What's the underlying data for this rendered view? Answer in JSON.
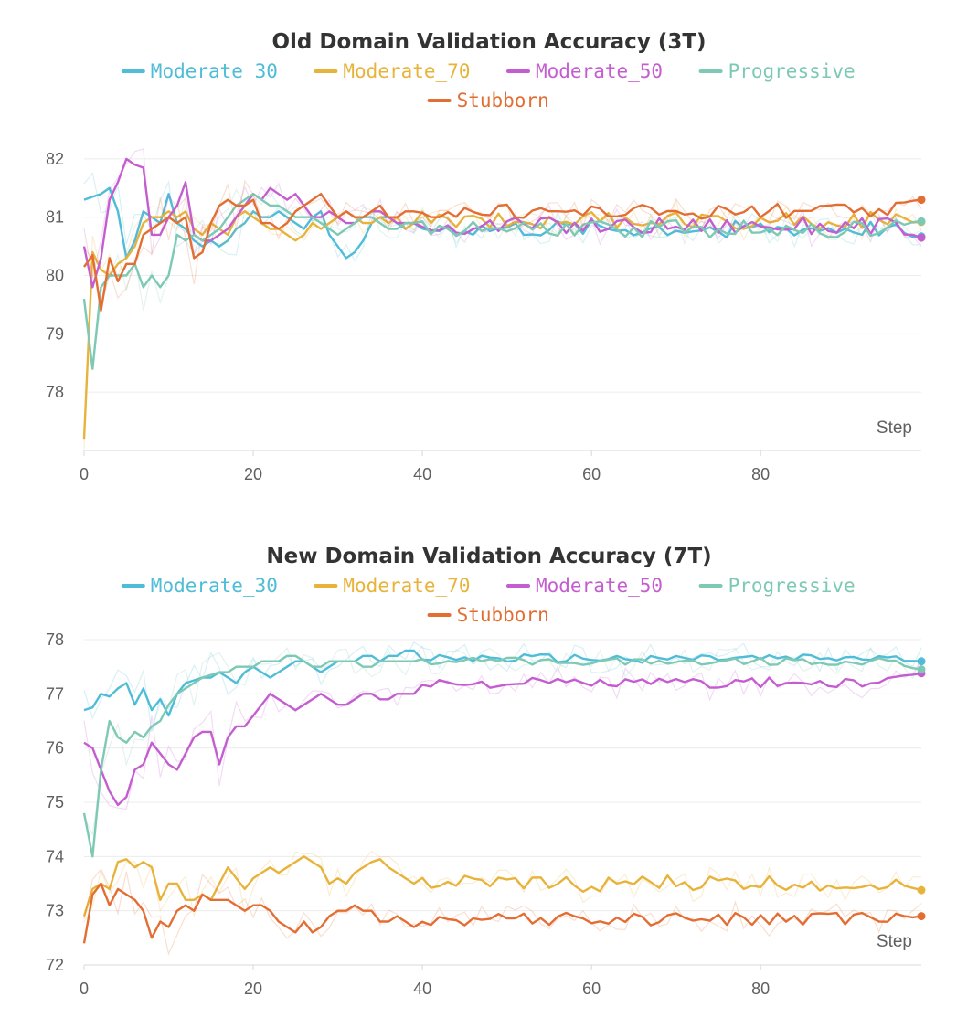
{
  "chart_data": [
    {
      "type": "line",
      "title": "Old Domain Validation Accuracy (3T)",
      "xlabel": "Step",
      "ylabel": "",
      "xlim": [
        0,
        99
      ],
      "ylim": [
        77,
        82.5
      ],
      "xticks": [
        "0",
        "20",
        "40",
        "60",
        "80"
      ],
      "yticks": [
        "78",
        "79",
        "80",
        "81",
        "82"
      ],
      "legend": [
        "Moderate 30",
        "Moderate_70",
        "Moderate_50",
        "Progressive",
        "Stubborn"
      ],
      "series": [
        {
          "name": "Moderate 30",
          "color": "#4fbcd8",
          "start": [
            81.3,
            81.35,
            81.4,
            81.5,
            81.1,
            80.3,
            80.6,
            81.1,
            81.0,
            80.9,
            81.4,
            80.9,
            80.8,
            80.6,
            80.5,
            80.6,
            80.5,
            80.6,
            80.8,
            80.9,
            81.1,
            81.0,
            81.0,
            81.1,
            81.0,
            80.9,
            80.8,
            81.0,
            81.1,
            80.7,
            80.5,
            80.3,
            80.4,
            80.6,
            80.9,
            81.0,
            81.0,
            80.9,
            80.8,
            80.9
          ],
          "base": 80.8,
          "amp": 0.15,
          "end": 80.67
        },
        {
          "name": "Moderate_70",
          "color": "#e8b33a",
          "start": [
            77.2,
            80.4,
            80.1,
            80.0,
            80.2,
            80.3,
            80.5,
            80.9,
            81.0,
            81.0,
            81.1,
            81.0,
            81.1,
            80.8,
            80.7,
            80.9,
            80.8,
            80.7,
            81.0,
            81.1,
            81.0,
            80.9,
            80.8,
            80.8,
            80.7,
            80.6,
            80.7,
            80.9,
            80.8,
            80.9,
            81.0,
            81.1,
            81.0,
            80.9,
            80.9,
            81.0,
            80.9,
            81.0,
            80.8,
            80.9
          ],
          "base": 80.95,
          "amp": 0.15,
          "end": 80.92
        },
        {
          "name": "Moderate_50",
          "color": "#c45ed0",
          "start": [
            80.5,
            79.8,
            80.3,
            81.3,
            81.6,
            82.0,
            81.9,
            81.85,
            80.7,
            80.7,
            81.0,
            81.2,
            81.6,
            80.7,
            80.6,
            80.6,
            80.7,
            80.8,
            81.0,
            81.2,
            81.4,
            81.3,
            81.5,
            81.4,
            81.3,
            81.4,
            81.2,
            81.0,
            81.0,
            81.1,
            81.0,
            80.9,
            80.9,
            81.0,
            81.1,
            81.1,
            81.0,
            80.9,
            80.9,
            80.9
          ],
          "base": 80.85,
          "amp": 0.15,
          "end": 80.65
        },
        {
          "name": "Progressive",
          "color": "#7ec9b4",
          "start": [
            79.6,
            78.4,
            79.8,
            80.0,
            80.0,
            80.0,
            80.2,
            79.8,
            80.0,
            79.8,
            80.0,
            80.7,
            80.6,
            80.7,
            80.6,
            80.7,
            80.8,
            81.0,
            81.2,
            81.3,
            81.4,
            81.3,
            81.2,
            81.2,
            81.1,
            81.0,
            81.0,
            81.0,
            80.9,
            80.8,
            80.7,
            80.8,
            80.9,
            81.0,
            81.0,
            80.9,
            80.8,
            80.8,
            80.9,
            80.9
          ],
          "base": 80.8,
          "amp": 0.15,
          "end": 80.93
        },
        {
          "name": "Stubborn",
          "color": "#e36e33",
          "start": [
            80.15,
            80.35,
            79.4,
            80.3,
            79.9,
            80.2,
            80.2,
            80.7,
            80.8,
            80.9,
            81.0,
            80.9,
            81.0,
            80.3,
            80.4,
            80.9,
            81.2,
            81.3,
            81.2,
            81.2,
            81.3,
            80.9,
            80.9,
            80.8,
            80.9,
            81.1,
            81.2,
            81.3,
            81.4,
            81.2,
            81.0,
            81.1,
            81.0,
            81.0,
            81.1,
            81.2,
            81.0,
            81.0,
            81.1,
            81.1
          ],
          "base": 81.1,
          "amp": 0.13,
          "end": 81.3
        }
      ]
    },
    {
      "type": "line",
      "title": "New Domain Validation Accuracy (7T)",
      "xlabel": "Step",
      "ylabel": "",
      "xlim": [
        0,
        99
      ],
      "ylim": [
        72,
        78
      ],
      "xticks": [
        "0",
        "20",
        "40",
        "60",
        "80"
      ],
      "yticks": [
        "72",
        "73",
        "74",
        "75",
        "76",
        "77",
        "78"
      ],
      "legend": [
        "Moderate_30",
        "Moderate_70",
        "Moderate_50",
        "Progressive",
        "Stubborn"
      ],
      "series": [
        {
          "name": "Moderate_30",
          "color": "#4fbcd8",
          "start": [
            76.7,
            76.75,
            77.0,
            76.95,
            77.1,
            77.2,
            76.8,
            77.1,
            76.7,
            76.9,
            76.6,
            77.0,
            77.2,
            77.25,
            77.3,
            77.3,
            77.4,
            77.3,
            77.2,
            77.4,
            77.5,
            77.4,
            77.3,
            77.4,
            77.5,
            77.6,
            77.6,
            77.5,
            77.4,
            77.5,
            77.6,
            77.6,
            77.6,
            77.7,
            77.7,
            77.6,
            77.7,
            77.7,
            77.8,
            77.8
          ],
          "base": 77.65,
          "amp": 0.08,
          "end": 77.6
        },
        {
          "name": "Moderate_70",
          "color": "#e8b33a",
          "start": [
            72.9,
            73.4,
            73.5,
            73.4,
            73.9,
            73.95,
            73.8,
            73.9,
            73.8,
            73.2,
            73.5,
            73.5,
            73.2,
            73.2,
            73.3,
            73.2,
            73.5,
            73.8,
            73.6,
            73.4,
            73.6,
            73.7,
            73.8,
            73.7,
            73.8,
            73.9,
            74.0,
            73.9,
            73.8,
            73.5,
            73.6,
            73.5,
            73.7,
            73.8,
            73.9,
            73.95,
            73.8,
            73.7,
            73.6,
            73.5
          ],
          "base": 73.5,
          "amp": 0.15,
          "end": 73.38
        },
        {
          "name": "Moderate_50",
          "color": "#c45ed0",
          "start": [
            76.1,
            76.0,
            75.6,
            75.2,
            74.95,
            75.1,
            75.6,
            75.7,
            76.1,
            75.9,
            75.7,
            75.6,
            75.9,
            76.2,
            76.3,
            76.3,
            75.7,
            76.2,
            76.4,
            76.4,
            76.6,
            76.8,
            77.0,
            76.9,
            76.8,
            76.7,
            76.8,
            76.9,
            77.0,
            76.9,
            76.8,
            76.8,
            76.9,
            77.0,
            77.0,
            76.9,
            76.9,
            77.0,
            77.0,
            77.0
          ],
          "base": 77.2,
          "amp": 0.1,
          "end": 77.38
        },
        {
          "name": "Progressive",
          "color": "#7ec9b4",
          "start": [
            74.8,
            74.0,
            75.6,
            76.5,
            76.2,
            76.1,
            76.3,
            76.2,
            76.4,
            76.5,
            76.8,
            77.0,
            77.1,
            77.2,
            77.3,
            77.35,
            77.4,
            77.4,
            77.5,
            77.5,
            77.5,
            77.6,
            77.6,
            77.6,
            77.7,
            77.7,
            77.6,
            77.5,
            77.5,
            77.6,
            77.6,
            77.6,
            77.6,
            77.5,
            77.5,
            77.6,
            77.6,
            77.6,
            77.6,
            77.6
          ],
          "base": 77.6,
          "amp": 0.07,
          "end": 77.45
        },
        {
          "name": "Stubborn",
          "color": "#e36e33",
          "start": [
            72.4,
            73.3,
            73.5,
            73.1,
            73.4,
            73.3,
            73.2,
            73.0,
            72.5,
            72.8,
            72.7,
            73.0,
            73.1,
            73.0,
            73.3,
            73.2,
            73.2,
            73.2,
            73.1,
            73.0,
            73.1,
            73.1,
            73.0,
            72.8,
            72.7,
            72.6,
            72.8,
            72.6,
            72.7,
            72.9,
            73.0,
            73.0,
            73.1,
            73.0,
            73.0,
            72.8,
            72.8,
            72.9,
            72.8,
            72.7
          ],
          "base": 72.85,
          "amp": 0.12,
          "end": 72.9
        }
      ]
    }
  ]
}
